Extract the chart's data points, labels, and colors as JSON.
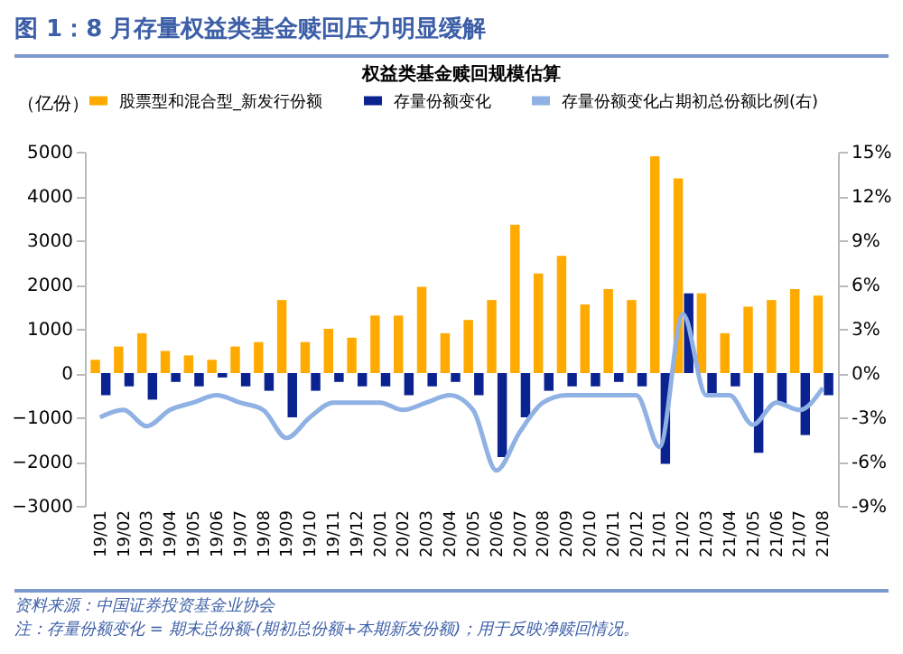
{
  "chart_data": {
    "type": "bar",
    "title": "图 1：8 月存量权益类基金赎回压力明显缓解",
    "subtitle": "权益类基金赎回规模估算",
    "ylabel": "（亿份）",
    "annotations": [
      "资料来源：中国证券投资基金业协会",
      "注：存量份额变化 = 期末总份额-(期初总份额+本期新发份额)；用于反映净赎回情况。"
    ],
    "categories": [
      "19/01",
      "19/02",
      "19/03",
      "19/04",
      "19/05",
      "19/06",
      "19/07",
      "19/08",
      "19/09",
      "19/10",
      "19/11",
      "19/12",
      "20/01",
      "20/02",
      "20/03",
      "20/04",
      "20/05",
      "20/06",
      "20/07",
      "20/08",
      "20/09",
      "20/10",
      "20/11",
      "20/12",
      "21/01",
      "21/02",
      "21/03",
      "21/04",
      "21/05",
      "21/06",
      "21/07",
      "21/08"
    ],
    "series": [
      {
        "name": "股票型和混合型_新发行份额",
        "color": "#ffaa00",
        "values": [
          300,
          600,
          900,
          500,
          400,
          300,
          600,
          700,
          1650,
          700,
          1000,
          800,
          1300,
          1300,
          1950,
          900,
          1200,
          1650,
          3350,
          2250,
          2650,
          1550,
          1900,
          1650,
          4900,
          4400,
          1800,
          900,
          1500,
          1650,
          1900,
          1750
        ]
      },
      {
        "name": "存量份额变化",
        "color": "#0b2291",
        "values": [
          -500,
          -300,
          -600,
          -200,
          -300,
          -100,
          -300,
          -400,
          -1000,
          -400,
          -200,
          -300,
          -300,
          -500,
          -300,
          -200,
          -500,
          -1900,
          -1000,
          -400,
          -300,
          -300,
          -200,
          -300,
          -2050,
          1800,
          -500,
          -300,
          -1800,
          -700,
          -1400,
          -500
        ]
      },
      {
        "name": "存量份额变化占期初总份额比例(右)",
        "color": "#8fb1e3",
        "type": "line",
        "axis": "y2",
        "values": [
          -3,
          -2.5,
          -3.6,
          -2.5,
          -2,
          -1.5,
          -2,
          -2.5,
          -4.4,
          -3,
          -2,
          -2,
          -2,
          -2.5,
          -2,
          -1.5,
          -2.5,
          -6.6,
          -4,
          -2,
          -1.5,
          -1.5,
          -1.5,
          -1.5,
          -5,
          4,
          -1.5,
          -1.5,
          -3.5,
          -2,
          -2.5,
          -1
        ]
      }
    ],
    "ylim": [
      -3000,
      5000
    ],
    "yticks": [
      -3000,
      -2000,
      -1000,
      0,
      1000,
      2000,
      3000,
      4000,
      5000
    ],
    "y2lim": [
      -9,
      15
    ],
    "y2ticks": [
      {
        "value": -9,
        "label": "-9%"
      },
      {
        "value": -6,
        "label": "-6%"
      },
      {
        "value": -3,
        "label": "-3%"
      },
      {
        "value": 0,
        "label": "0%"
      },
      {
        "value": 3,
        "label": "3%"
      },
      {
        "value": 6,
        "label": "6%"
      },
      {
        "value": 9,
        "label": "9%"
      },
      {
        "value": 12,
        "label": "12%"
      },
      {
        "value": 15,
        "label": "15%"
      }
    ],
    "legend": "top",
    "grid": false
  }
}
